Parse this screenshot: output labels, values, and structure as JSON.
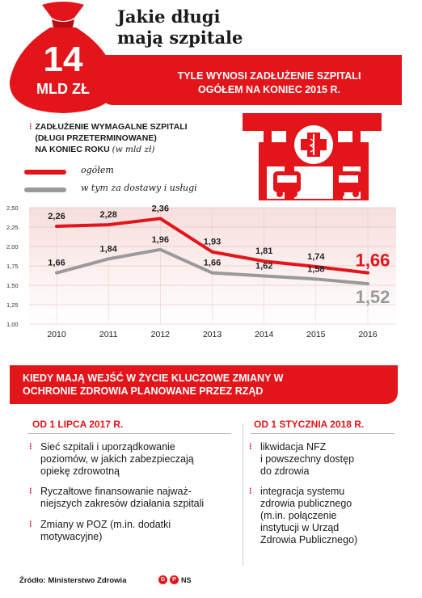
{
  "header": {
    "title_line1": "Jakie długi",
    "title_line2": "mają szpitale",
    "bag_amount": "14",
    "bag_unit": "MLD ZŁ",
    "banner_line1": "TYLE WYNOSI ZADŁUŻENIE SZPITALI",
    "banner_line2": "OGÓŁEM NA KONIEC 2015 R."
  },
  "chart_desc": {
    "marker": "⁝",
    "line1": "ZADŁUŻENIE WYMAGALNE SZPITALI",
    "line2": "(DŁUGI PRZETERMINOWANE)",
    "line3": "NA KONIEC ROKU",
    "unit": "(w mld zł)"
  },
  "colors": {
    "accent": "#e3141a",
    "grey": "#9a9a9a",
    "white": "#ffffff"
  },
  "icons": [
    "money-bag-icon",
    "hospital-icon",
    "ambulance-icon"
  ],
  "chart_data": {
    "type": "line",
    "x": [
      2010,
      2011,
      2012,
      2013,
      2014,
      2015,
      2016
    ],
    "x_labels": [
      "2010",
      "2011",
      "2012",
      "2013",
      "2014",
      "2015",
      "2016"
    ],
    "ylim": [
      1.0,
      2.5
    ],
    "y_ticks": [
      "1,00",
      "1,25",
      "1,50",
      "1,75",
      "2,00",
      "2,25",
      "2,50"
    ],
    "grid": true,
    "legend_position": "top-left",
    "series": [
      {
        "name": "ogółem",
        "color": "#e3141a",
        "values": [
          2.26,
          2.28,
          2.36,
          1.93,
          1.81,
          1.74,
          1.66
        ],
        "labels": [
          "2,26",
          "2,28",
          "2,36",
          "1,93",
          "1,81",
          "1,74",
          "1,66"
        ]
      },
      {
        "name": "w tym za dostawy i usługi",
        "color": "#9a9a9a",
        "values": [
          1.66,
          1.84,
          1.96,
          1.66,
          1.62,
          1.58,
          1.52
        ],
        "labels": [
          "1,66",
          "1,84",
          "1,96",
          "1,66",
          "1,62",
          "1,58",
          "1,52"
        ]
      }
    ]
  },
  "changes": {
    "title_line1": "KIEDY MAJĄ WEJŚĆ W ŻYCIE KLUCZOWE ZMIANY W",
    "title_line2": "OCHRONIE ZDROWIA PLANOWANE PRZEZ RZĄD",
    "marker": "⁝",
    "left": {
      "heading": "OD 1 LIPCA 2017 R.",
      "items": [
        {
          "l1": "Sieć szpitali i uporządkowanie",
          "l2": "poziomów, w jakich zabezpieczają",
          "l3": "opiekę zdrowotną"
        },
        {
          "l1": "Ryczałtowe finansowanie najważ-",
          "l2": "niejszych zakresów działania szpitali",
          "l3": ""
        },
        {
          "l1": "Zmiany w POZ (m.in. dodatki",
          "l2": "motywacyjne)",
          "l3": ""
        }
      ]
    },
    "right": {
      "heading": "OD 1 STYCZNIA 2018 R.",
      "items": [
        {
          "l1": "likwidacja NFZ",
          "l2": "i powszechny dostęp",
          "l3": "do zdrowia",
          "l4": "",
          "l5": ""
        },
        {
          "l1": "integracja systemu",
          "l2": "zdrowia publicznego",
          "l3": "(m.in. połączenie",
          "l4": "instytucji w Urząd",
          "l5": "Zdrowia Publicznego)"
        }
      ]
    }
  },
  "footer": {
    "source": "Źródło: Ministerstwo Zdrowia",
    "logo_letters": "NS"
  }
}
